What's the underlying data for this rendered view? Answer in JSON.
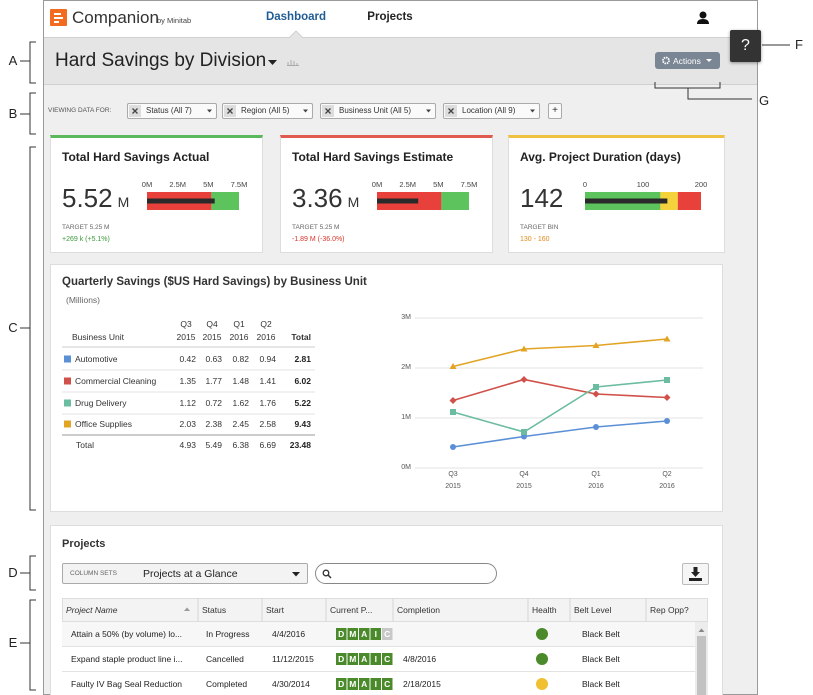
{
  "header": {
    "logo": "Companion",
    "logo_sub": "by Minitab",
    "nav": [
      "Dashboard",
      "Projects"
    ],
    "help": "?"
  },
  "title_bar": {
    "title": "Hard Savings by Division",
    "actions": "Actions"
  },
  "filters": {
    "label": "VIEWING DATA FOR:",
    "chips": [
      "Status (All 7)",
      "Region (All 5)",
      "Business Unit (All 5)",
      "Location (All 9)"
    ],
    "add": "+"
  },
  "kpis": [
    {
      "title": "Total Hard Savings Actual",
      "value": 5.52,
      "unit": "M",
      "stripe": "#5cb85c",
      "ticks": [
        {
          "value": 0,
          "label": "0M"
        },
        {
          "value": 2.5,
          "label": "2.5M"
        },
        {
          "value": 5,
          "label": "5M"
        },
        {
          "value": 7.5,
          "label": "7.5M"
        }
      ],
      "bands": [
        {
          "to": 5.25,
          "color": "#e8413b"
        },
        {
          "to": 7.5,
          "color": "#5dc35d"
        }
      ],
      "target_label": "TARGET 5.25 M",
      "delta": "+269 k (+5.1%)",
      "delta_color": "#3a9a3a"
    },
    {
      "title": "Total Hard Savings Estimate",
      "value": 3.36,
      "unit": "M",
      "stripe": "#e05a4f",
      "ticks": [
        {
          "value": 0,
          "label": "0M"
        },
        {
          "value": 2.5,
          "label": "2.5M"
        },
        {
          "value": 5,
          "label": "5M"
        },
        {
          "value": 7.5,
          "label": "7.5M"
        }
      ],
      "bands": [
        {
          "to": 5.25,
          "color": "#e8413b"
        },
        {
          "to": 7.5,
          "color": "#5dc35d"
        }
      ],
      "target_label": "TARGET 5.25 M",
      "delta": "-1.89 M (-36.0%)",
      "delta_color": "#d9342b"
    },
    {
      "title": "Avg. Project Duration (days)",
      "value": 142,
      "unit": null,
      "stripe": "#f0c040",
      "ticks": [
        0,
        100,
        200
      ],
      "bands": [
        {
          "to": 130,
          "color": "#5dc35d"
        },
        {
          "to": 160,
          "color": "#f3d23c"
        },
        {
          "to": 200,
          "color": "#e8413b"
        }
      ],
      "target_label": "TARGET BIN",
      "delta": "130 - 160",
      "delta_color": "#e08a1e"
    }
  ],
  "quarterly": {
    "title": "Quarterly Savings ($US Hard Savings) by Business Unit",
    "subtitle": "(Millions)",
    "unit_label": "Business Unit",
    "quarters": [
      {
        "q": "Q3",
        "y": "2015"
      },
      {
        "q": "Q4",
        "y": "2015"
      },
      {
        "q": "Q1",
        "y": "2016"
      },
      {
        "q": "Q2",
        "y": "2016"
      }
    ],
    "total_header": "Total",
    "rows": [
      {
        "name": "Automotive",
        "color": "#5b8fd6",
        "marker": "circle",
        "values": [
          0.42,
          0.63,
          0.82,
          0.94
        ],
        "total": 2.81
      },
      {
        "name": "Commercial Cleaning",
        "color": "#d0504a",
        "marker": "diamond",
        "values": [
          1.35,
          1.77,
          1.48,
          1.41
        ],
        "total": 6.02
      },
      {
        "name": "Drug Delivery",
        "color": "#6cbca2",
        "marker": "square",
        "values": [
          1.12,
          0.72,
          1.62,
          1.76
        ],
        "total": 5.22
      },
      {
        "name": "Office Supplies",
        "color": "#e2a424",
        "marker": "triangle",
        "values": [
          2.03,
          2.38,
          2.45,
          2.58
        ],
        "total": 9.43
      }
    ],
    "totals": {
      "label": "Total",
      "values": [
        4.93,
        5.49,
        6.38,
        6.69
      ],
      "total": 23.48
    },
    "chart": {
      "ylim": [
        0,
        3
      ],
      "yticks": [
        {
          "value": 0,
          "label": "0M"
        },
        {
          "value": 1,
          "label": "1M"
        },
        {
          "value": 2,
          "label": "2M"
        },
        {
          "value": 3,
          "label": "3M"
        }
      ],
      "grid": true
    }
  },
  "projects": {
    "title": "Projects",
    "column_sets_label": "COLUMN SETS",
    "column_set": "Projects at a Glance",
    "columns": [
      "Project Name",
      "Status",
      "Start",
      "Current P...",
      "Completion",
      "Health",
      "Belt Level",
      "Rep Opp?"
    ],
    "rows": [
      {
        "name": "Attain a 50% (by volume) lo...",
        "status": "In Progress",
        "start": "4/4/2016",
        "phases": [
          {
            "letter": "D",
            "done": true
          },
          {
            "letter": "M",
            "done": true
          },
          {
            "letter": "A",
            "done": true
          },
          {
            "letter": "I",
            "done": true
          },
          {
            "letter": "C",
            "done": false
          }
        ],
        "completion": null,
        "health": "#4a8a2a",
        "belt": "Black Belt"
      },
      {
        "name": "Expand staple product line i...",
        "status": "Cancelled",
        "start": "11/12/2015",
        "phases": [
          {
            "letter": "D",
            "done": true
          },
          {
            "letter": "M",
            "done": true
          },
          {
            "letter": "A",
            "done": true
          },
          {
            "letter": "I",
            "done": true
          },
          {
            "letter": "C",
            "done": true
          }
        ],
        "completion": "4/8/2016",
        "health": "#4a8a2a",
        "belt": "Black Belt"
      },
      {
        "name": "Faulty IV Bag Seal Reduction",
        "status": "Completed",
        "start": "4/30/2014",
        "phases": [
          {
            "letter": "D",
            "done": true
          },
          {
            "letter": "M",
            "done": true
          },
          {
            "letter": "A",
            "done": true
          },
          {
            "letter": "I",
            "done": true
          },
          {
            "letter": "C",
            "done": true
          }
        ],
        "completion": "2/18/2015",
        "health": "#f0c030",
        "belt": "Black Belt"
      }
    ]
  },
  "callouts": [
    "A",
    "B",
    "C",
    "D",
    "E",
    "F",
    "G"
  ]
}
